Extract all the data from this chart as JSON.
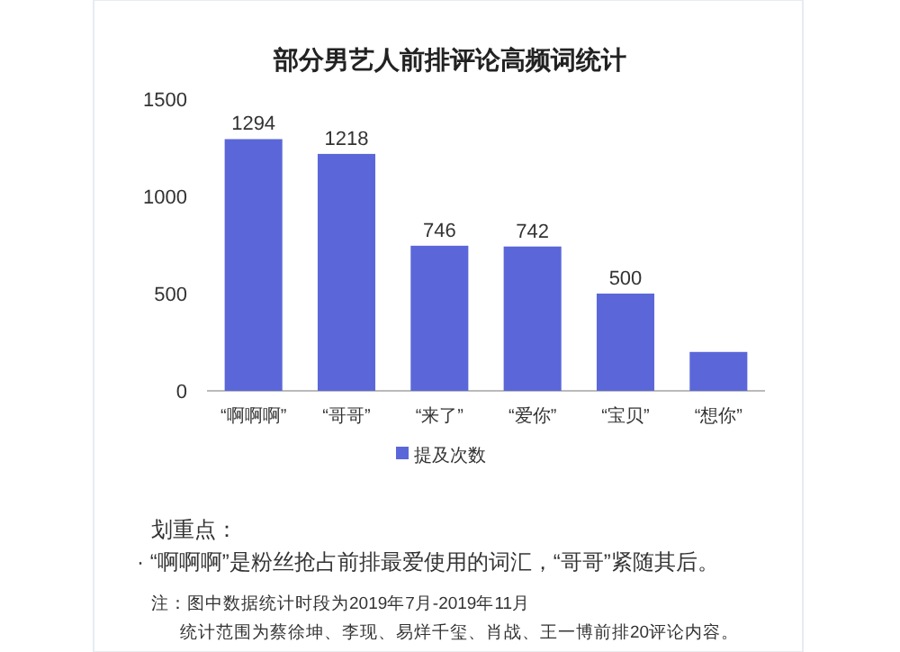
{
  "chart_data": {
    "type": "bar",
    "title": "部分男艺人前排评论高频词统计",
    "categories": [
      "“啊啊啊”",
      "“哥哥”",
      "“来了”",
      "“爱你”",
      "“宝贝”",
      "“想你”"
    ],
    "series": [
      {
        "name": "提及次数",
        "color": "#5b67d8",
        "values": [
          1294,
          1218,
          746,
          742,
          500,
          200
        ],
        "value_labels": [
          "1294",
          "1218",
          "746",
          "742",
          "500",
          null
        ]
      }
    ],
    "ylim": [
      0,
      1500
    ],
    "yticks": [
      0,
      500,
      1000,
      1500
    ],
    "legend": "bottom",
    "annotations": [
      "划重点：",
      "· “啊啊啊”是粉丝抢占前排最爱使用的词汇，“哥哥”紧随其后。",
      "注：图中数据统计时段为2019年7月-2019年11月",
      "统计范围为蔡徐坤、李现、易烊千玺、肖战、王一博前排20评论内容。"
    ]
  }
}
